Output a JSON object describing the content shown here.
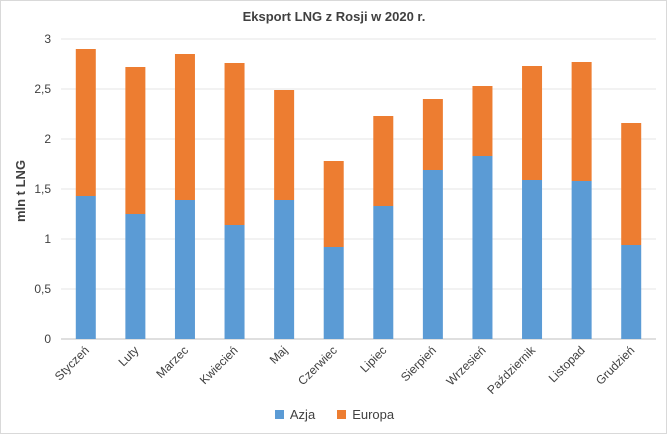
{
  "chart_data": {
    "type": "bar",
    "stacked": true,
    "title": "Eksport LNG z Rosji w 2020 r.",
    "xlabel": "",
    "ylabel": "mln t LNG",
    "ylim": [
      0,
      3
    ],
    "yticks": [
      "0",
      "0,5",
      "1",
      "1,5",
      "2",
      "2,5",
      "3"
    ],
    "grid": true,
    "legend_position": "bottom",
    "categories": [
      "Styczeń",
      "Luty",
      "Marzec",
      "Kwiecień",
      "Maj",
      "Czerwiec",
      "Lipiec",
      "Sierpień",
      "Wrzesień",
      "Październik",
      "Listopad",
      "Grudzień"
    ],
    "series": [
      {
        "name": "Azja",
        "color": "#5b9bd5",
        "values": [
          1.43,
          1.25,
          1.39,
          1.14,
          1.39,
          0.92,
          1.33,
          1.69,
          1.83,
          1.59,
          1.58,
          0.94
        ]
      },
      {
        "name": "Europa",
        "color": "#ed7d31",
        "values": [
          1.47,
          1.47,
          1.46,
          1.62,
          1.1,
          0.86,
          0.9,
          0.71,
          0.7,
          1.14,
          1.19,
          1.22
        ]
      }
    ]
  }
}
